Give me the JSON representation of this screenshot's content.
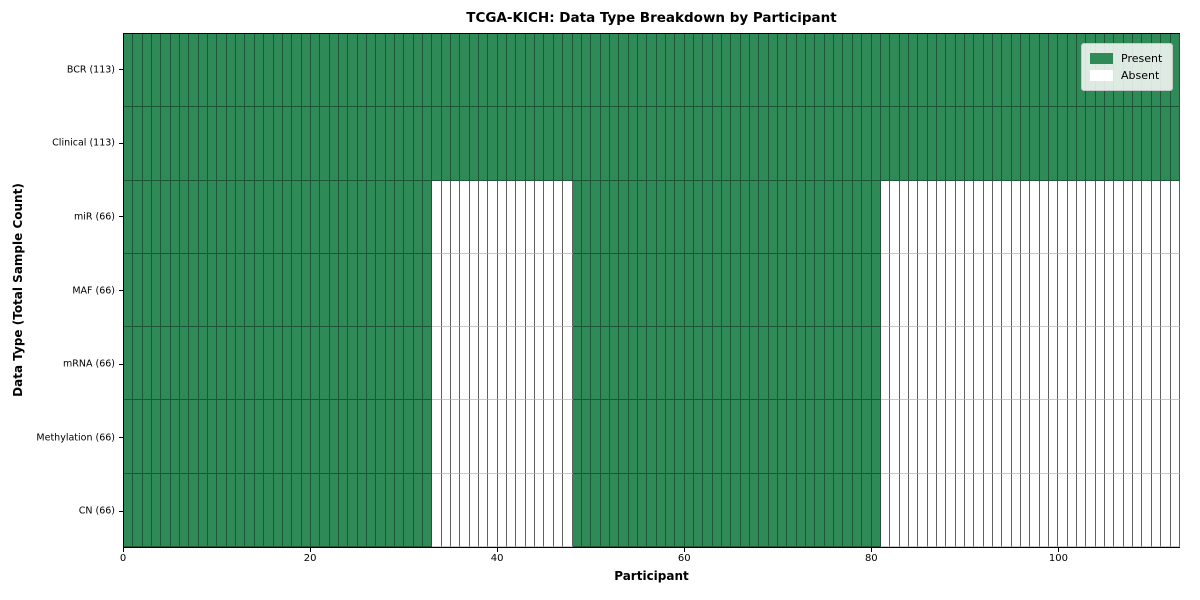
{
  "chart_data": {
    "type": "heatmap",
    "title": "TCGA-KICH: Data Type Breakdown by Participant",
    "xlabel": "Participant",
    "ylabel": "Data Type (Total Sample Count)",
    "n_participants": 113,
    "x_ticks": [
      0,
      20,
      40,
      60,
      80,
      100
    ],
    "x_range": [
      0,
      113
    ],
    "grid": "cell-borders",
    "legend_position": "upper-right",
    "legend": [
      {
        "label": "Present",
        "color": "#2e8b57"
      },
      {
        "label": "Absent",
        "color": "#ffffff"
      }
    ],
    "colors": {
      "present_fill": "#2e8b57",
      "present_edge": "#1c5637",
      "absent_fill": "#ffffff",
      "absent_edge_vertical": "#606060",
      "absent_edge_horizontal": "#c8c8c8"
    },
    "rows": [
      {
        "label": "BCR (113)",
        "count": 113,
        "present_ranges": [
          [
            0,
            113
          ]
        ]
      },
      {
        "label": "Clinical (113)",
        "count": 113,
        "present_ranges": [
          [
            0,
            113
          ]
        ]
      },
      {
        "label": "miR (66)",
        "count": 66,
        "present_ranges": [
          [
            0,
            33
          ],
          [
            48,
            81
          ]
        ]
      },
      {
        "label": "MAF (66)",
        "count": 66,
        "present_ranges": [
          [
            0,
            33
          ],
          [
            48,
            81
          ]
        ]
      },
      {
        "label": "mRNA (66)",
        "count": 66,
        "present_ranges": [
          [
            0,
            33
          ],
          [
            48,
            81
          ]
        ]
      },
      {
        "label": "Methylation (66)",
        "count": 66,
        "present_ranges": [
          [
            0,
            33
          ],
          [
            48,
            81
          ]
        ]
      },
      {
        "label": "CN (66)",
        "count": 66,
        "present_ranges": [
          [
            0,
            33
          ],
          [
            48,
            81
          ]
        ]
      }
    ]
  }
}
